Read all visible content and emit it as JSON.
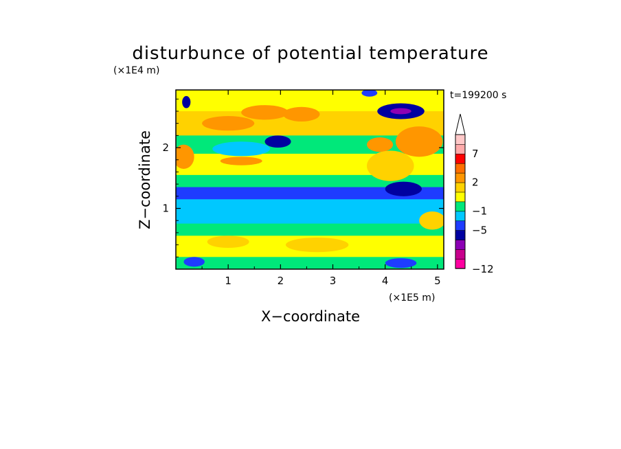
{
  "chart_data": {
    "type": "heatmap",
    "title": "disturbunce of potential temperature",
    "time_label": "t=199200 s",
    "xlabel": "X−coordinate",
    "ylabel": "Z−coordinate",
    "x_multiplier": "(×1E5 m)",
    "y_multiplier": "(×1E4 m)",
    "xlim": [
      0,
      5.12
    ],
    "ylim": [
      0,
      2.95
    ],
    "x_ticks": [
      {
        "value": 1,
        "label": "1"
      },
      {
        "value": 2,
        "label": "2"
      },
      {
        "value": 3,
        "label": "3"
      },
      {
        "value": 4,
        "label": "4"
      },
      {
        "value": 5,
        "label": "5"
      }
    ],
    "y_ticks": [
      {
        "value": 1,
        "label": "1"
      },
      {
        "value": 2,
        "label": "2"
      }
    ],
    "colorbar": {
      "levels_shown": [
        {
          "value": 7,
          "label": "7"
        },
        {
          "value": 2,
          "label": "2"
        },
        {
          "value": -1,
          "label": "−1"
        },
        {
          "value": -5,
          "label": "−5"
        },
        {
          "value": -12,
          "label": "−12"
        }
      ],
      "colors": [
        "#ff00a0",
        "#c8008c",
        "#8c00b4",
        "#0000a0",
        "#1e3cff",
        "#00c8ff",
        "#00e87a",
        "#ffff00",
        "#ffd200",
        "#ff9600",
        "#ff6e00",
        "#ff0000",
        "#ffaaaa",
        "#ffc8c8"
      ]
    },
    "bands": [
      {
        "z": [
          2.6,
          2.95
        ],
        "value": 1
      },
      {
        "z": [
          2.2,
          2.6
        ],
        "value": 2
      },
      {
        "z": [
          1.9,
          2.2
        ],
        "value": 0
      },
      {
        "z": [
          1.55,
          1.9
        ],
        "value": 1
      },
      {
        "z": [
          1.35,
          1.55
        ],
        "value": 0
      },
      {
        "z": [
          1.15,
          1.35
        ],
        "value": -2
      },
      {
        "z": [
          0.75,
          1.15
        ],
        "value": -1
      },
      {
        "z": [
          0.55,
          0.75
        ],
        "value": 0
      },
      {
        "z": [
          0.2,
          0.55
        ],
        "value": 1
      },
      {
        "z": [
          0,
          0.2
        ],
        "value": 0
      }
    ],
    "blobs": [
      {
        "x": 1.0,
        "z": 2.4,
        "rx": 0.5,
        "rz": 0.12,
        "value": 3
      },
      {
        "x": 1.7,
        "z": 2.58,
        "rx": 0.45,
        "rz": 0.12,
        "value": 3
      },
      {
        "x": 2.4,
        "z": 2.55,
        "rx": 0.35,
        "rz": 0.12,
        "value": 3
      },
      {
        "x": 0.15,
        "z": 1.85,
        "rx": 0.2,
        "rz": 0.2,
        "value": 3
      },
      {
        "x": 1.25,
        "z": 1.98,
        "rx": 0.55,
        "rz": 0.12,
        "value": -1
      },
      {
        "x": 1.95,
        "z": 2.1,
        "rx": 0.25,
        "rz": 0.1,
        "value": -5
      },
      {
        "x": 1.25,
        "z": 1.78,
        "rx": 0.4,
        "rz": 0.07,
        "value": 3
      },
      {
        "x": 4.3,
        "z": 2.6,
        "rx": 0.45,
        "rz": 0.13,
        "value": -5
      },
      {
        "x": 4.3,
        "z": 2.6,
        "rx": 0.2,
        "rz": 0.05,
        "value": -7
      },
      {
        "x": 3.7,
        "z": 2.9,
        "rx": 0.15,
        "rz": 0.06,
        "value": -2
      },
      {
        "x": 4.65,
        "z": 2.1,
        "rx": 0.45,
        "rz": 0.25,
        "value": 3
      },
      {
        "x": 3.9,
        "z": 2.05,
        "rx": 0.25,
        "rz": 0.12,
        "value": 3
      },
      {
        "x": 4.35,
        "z": 1.32,
        "rx": 0.35,
        "rz": 0.12,
        "value": -5
      },
      {
        "x": 4.1,
        "z": 1.7,
        "rx": 0.45,
        "rz": 0.25,
        "value": 2
      },
      {
        "x": 0.2,
        "z": 2.75,
        "rx": 0.08,
        "rz": 0.1,
        "value": -5
      },
      {
        "x": 0.35,
        "z": 0.12,
        "rx": 0.2,
        "rz": 0.08,
        "value": -2
      },
      {
        "x": 4.3,
        "z": 0.1,
        "rx": 0.3,
        "rz": 0.08,
        "value": -2
      },
      {
        "x": 2.7,
        "z": 0.4,
        "rx": 0.6,
        "rz": 0.12,
        "value": 2
      },
      {
        "x": 4.9,
        "z": 0.8,
        "rx": 0.25,
        "rz": 0.15,
        "value": 2
      },
      {
        "x": 1.0,
        "z": 0.45,
        "rx": 0.4,
        "rz": 0.1,
        "value": 2
      }
    ]
  }
}
